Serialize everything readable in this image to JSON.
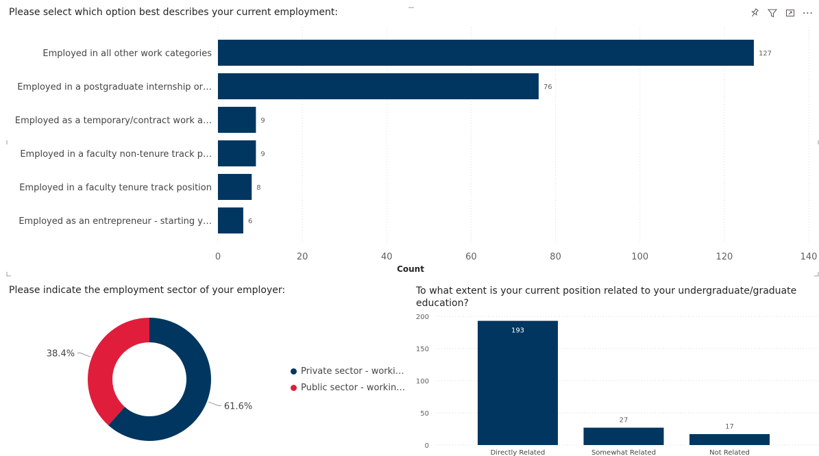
{
  "colors": {
    "navy": "#003660",
    "red": "#e01e3c",
    "grid": "#dddddd",
    "axis_text": "#605e5c"
  },
  "top": {
    "title": "Please select which option best describes your current employment:",
    "chart_data": {
      "type": "bar",
      "orientation": "horizontal",
      "categories": [
        "Employed in all other work categories",
        "Employed in a postgraduate internship or…",
        "Employed as a temporary/contract work a…",
        "Employed in a faculty non-tenure track p…",
        "Employed in a faculty tenure track position",
        "Employed as an entrepreneur - starting y…"
      ],
      "values": [
        127,
        76,
        9,
        9,
        8,
        6
      ],
      "xlabel": "Count",
      "xlim": [
        0,
        140
      ],
      "xticks": [
        "0",
        "20",
        "40",
        "60",
        "80",
        "100",
        "120",
        "140"
      ],
      "grid": true
    }
  },
  "sector": {
    "title": "Please indicate the employment sector of your employer:",
    "chart_data": {
      "type": "pie",
      "donut": true,
      "labels": [
        "Private sector - worki…",
        "Public sector - workin…"
      ],
      "values": [
        61.6,
        38.4
      ],
      "data_labels": [
        "61.6%",
        "38.4%"
      ],
      "colors": [
        "#003660",
        "#e01e3c"
      ],
      "legend": "right"
    }
  },
  "related": {
    "title_line1": "To what extent is your current position related to your undergraduate/graduate",
    "title_line2": "education?",
    "chart_data": {
      "type": "bar",
      "orientation": "vertical",
      "categories": [
        "Directly Related",
        "Somewhat Related",
        "Not Related"
      ],
      "values": [
        193,
        27,
        17
      ],
      "ylim": [
        0,
        200
      ],
      "yticks": [
        "0",
        "50",
        "100",
        "150",
        "200"
      ],
      "grid": true
    }
  },
  "toolbar": {
    "icons": [
      "pin-icon",
      "filter-icon",
      "focus-mode-icon",
      "more-options-icon"
    ],
    "more_label": "⋯"
  }
}
